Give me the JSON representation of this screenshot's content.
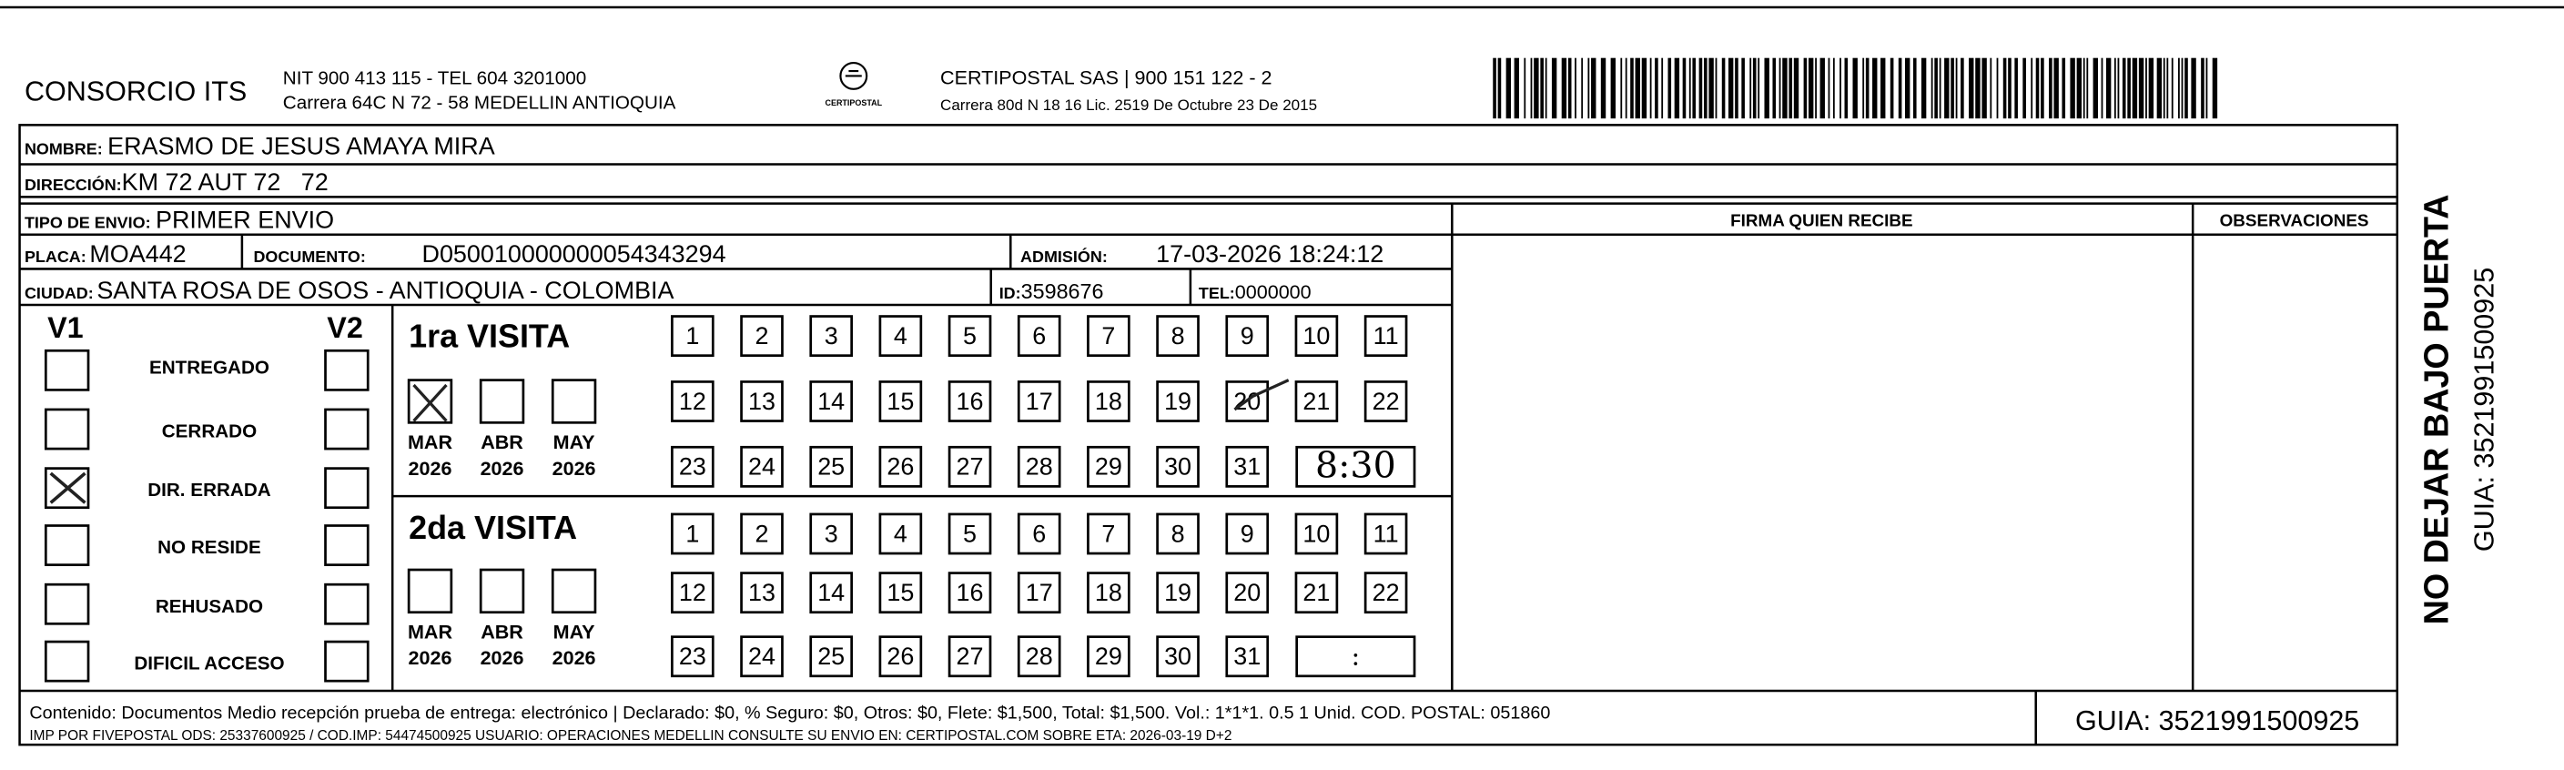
{
  "header": {
    "company": "CONSORCIO ITS",
    "nit": "NIT 900 413 115 - TEL 604 3201000",
    "address": "Carrera 64C N 72 - 58 MEDELLIN ANTIOQUIA",
    "logo_text": "CERTIPOSTAL",
    "carrier": "CERTIPOSTAL SAS | 900 151 122 - 2",
    "carrier_address": "Carrera 80d N 18 16 Lic. 2519 De Octubre 23 De 2015"
  },
  "fields": {
    "name": {
      "label": "NOMBRE:",
      "value": "ERASMO DE JESUS AMAYA MIRA"
    },
    "address": {
      "label": "DIRECCIÓN:",
      "value": "KM 72 AUT 72   72"
    },
    "shipment": {
      "label": "TIPO DE ENVIO:",
      "value": "PRIMER ENVIO"
    },
    "plate": {
      "label": "PLACA:",
      "value": "MOA442"
    },
    "document": {
      "label": "DOCUMENTO:",
      "value": "D050010000000054343294"
    },
    "admission": {
      "label": "ADMISIÓN:",
      "value": "17-03-2026 18:24:12"
    },
    "city": {
      "label": "CIUDAD:",
      "value": "SANTA ROSA DE OSOS - ANTIOQUIA - COLOMBIA"
    },
    "id": {
      "label": "ID:",
      "value": "3598676"
    },
    "phone": {
      "label": "TEL:",
      "value": "0000000"
    }
  },
  "signature": {
    "receiver": "FIRMA QUIEN RECIBE",
    "observations": "OBSERVACIONES"
  },
  "status": {
    "v1": "V1",
    "v2": "V2",
    "options": [
      "ENTREGADO",
      "CERRADO",
      "DIR. ERRADA",
      "NO RESIDE",
      "REHUSADO",
      "DIFICIL ACCESO"
    ]
  },
  "visits": [
    {
      "title": "1ra VISITA",
      "months": [
        "MAR",
        "ABR",
        "MAY"
      ],
      "years": [
        "2026",
        "2026",
        "2026"
      ],
      "days": [
        1,
        2,
        3,
        4,
        5,
        6,
        7,
        8,
        9,
        10,
        11,
        12,
        13,
        14,
        15,
        16,
        17,
        18,
        19,
        20,
        21,
        22,
        23,
        24,
        25,
        26,
        27,
        28,
        29,
        30,
        31
      ],
      "time": "8:30"
    },
    {
      "title": "2da VISITA",
      "months": [
        "MAR",
        "ABR",
        "MAY"
      ],
      "years": [
        "2026",
        "2026",
        "2026"
      ],
      "days": [
        1,
        2,
        3,
        4,
        5,
        6,
        7,
        8,
        9,
        10,
        11,
        12,
        13,
        14,
        15,
        16,
        17,
        18,
        19,
        20,
        21,
        22,
        23,
        24,
        25,
        26,
        27,
        28,
        29,
        30,
        31
      ],
      "time": ":"
    }
  ],
  "footer": {
    "content": "Contenido: Documentos Medio recepción prueba de entrega: electrónico | Declarado: $0, % Seguro: $0, Otros: $0, Flete: $1,500, Total: $1,500. Vol.: 1*1*1. 0.5  1 Unid. COD. POSTAL: 051860",
    "print": "IMP POR FIVEPOSTAL ODS: 25337600925 / COD.IMP: 54474500925 USUARIO: OPERACIONES MEDELLIN CONSULTE SU ENVIO EN: CERTIPOSTAL.COM SOBRE ETA: 2026-03-19 D+2",
    "guide": "GUIA: 3521991500925"
  },
  "side": {
    "notice": "NO DEJAR BAJO PUERTA",
    "guide": "GUIA: 3521991500925"
  }
}
